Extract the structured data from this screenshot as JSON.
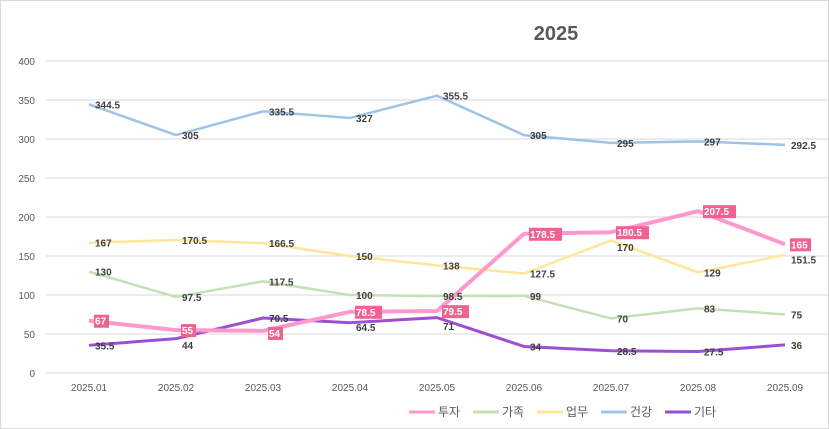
{
  "chart_data": {
    "type": "line",
    "title": "2025",
    "categories": [
      "2025.01",
      "2025.02",
      "2025.03",
      "2025.04",
      "2025.05",
      "2025.06",
      "2025.07",
      "2025.08",
      "2025.09"
    ],
    "ylim": [
      0,
      400
    ],
    "yticks": [
      0,
      50,
      100,
      150,
      200,
      250,
      300,
      350,
      400
    ],
    "grid": true,
    "legend": "bottom-right",
    "series": [
      {
        "name": "투자",
        "color": "#ff99cc",
        "label_bg": "#f06292",
        "values": [
          67,
          55,
          54,
          78.5,
          79.5,
          178.5,
          180.5,
          207.5,
          165
        ]
      },
      {
        "name": "가족",
        "color": "#c5e0b4",
        "values": [
          130,
          97.5,
          117.5,
          100,
          98.5,
          99,
          70,
          83,
          75
        ]
      },
      {
        "name": "업무",
        "color": "#ffe699",
        "values": [
          167,
          170.5,
          166.5,
          150,
          138,
          127.5,
          170,
          129,
          151.5
        ]
      },
      {
        "name": "건강",
        "color": "#9dc3e6",
        "values": [
          344.5,
          305,
          335.5,
          327,
          355.5,
          305,
          295,
          297,
          292.5
        ]
      },
      {
        "name": "기타",
        "color": "#9b4fd4",
        "values": [
          35.5,
          44,
          70.5,
          64.5,
          71,
          34,
          28.5,
          27.5,
          36
        ]
      }
    ]
  }
}
